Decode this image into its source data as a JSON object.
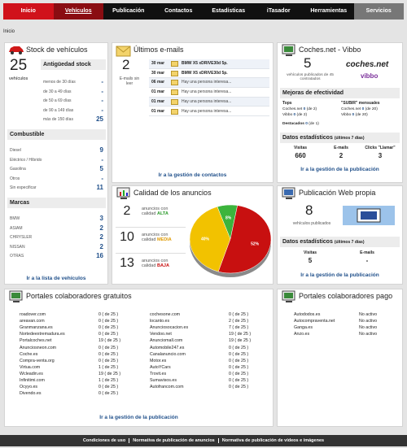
{
  "nav": [
    "Inicio",
    "Vehículos",
    "Publicación",
    "Contactos",
    "Estadísticas",
    "iTasador",
    "Herramientas",
    "Servicios"
  ],
  "breadcrumb": "Inicio",
  "stock": {
    "title": "Stock de vehículos",
    "count": "25",
    "count_label": "vehículos",
    "sections": [
      {
        "title": "Antigüedad stock",
        "rows": [
          [
            "menos de 30 días",
            "-"
          ],
          [
            "de 30 a 49 días",
            "-"
          ],
          [
            "de 50 a 69 días",
            "-"
          ],
          [
            "de 90 a 149 días",
            "-"
          ],
          [
            "más de 150 días",
            "25"
          ]
        ]
      },
      {
        "title": "Combustible",
        "rows": [
          [
            "Diesel",
            "9"
          ],
          [
            "Eléctrico / Híbrido",
            "-"
          ],
          [
            "Gasolina",
            "5"
          ],
          [
            "Otros",
            "-"
          ],
          [
            "Sin especificar",
            "11"
          ]
        ]
      },
      {
        "title": "Marcas",
        "rows": [
          [
            "BMW",
            "3"
          ],
          [
            "ASIAM",
            "2"
          ],
          [
            "CHRYSLER",
            "2"
          ],
          [
            "NISSAN",
            "2"
          ],
          [
            "OTRAS",
            "16"
          ]
        ]
      }
    ],
    "link": "Ir a la lista de vehículos"
  },
  "emails": {
    "title": "Últimos e-mails",
    "count": "2",
    "count_label": "E-mails sin leer",
    "rows": [
      [
        "30 mar",
        "BMW X5 xDRIVE30d 5p."
      ],
      [
        "30 mar",
        "BMW X5 xDRIVE30d 5p."
      ],
      [
        "06 mar",
        "Hay una persona interesa..."
      ],
      [
        "01 mar",
        "Hay una persona interesa..."
      ],
      [
        "01 mar",
        "Hay una persona interesa..."
      ],
      [
        "01 mar",
        "Hay una persona interesa..."
      ]
    ],
    "link": "Ir a la gestión de contactos"
  },
  "coches": {
    "title": "Coches.net - Vibbo",
    "count": "5",
    "count_label": "vehículos publicados de 45 contratados",
    "logos": [
      "coches.net",
      "vibbo"
    ],
    "improvements_title": "Mejoras de efectividad",
    "tops": {
      "title": "Tops",
      "rows": [
        [
          "Coches.net",
          "0",
          "(de 2)"
        ],
        [
          "Vibbo",
          "0",
          "(de 2)"
        ]
      ]
    },
    "subir": {
      "title": "\"SUBIR\" mensuales",
      "rows": [
        [
          "Coches.net",
          "0",
          "(de 20)"
        ],
        [
          "Vibbo",
          "0",
          "(de 20)"
        ]
      ]
    },
    "destacados": [
      "Destacados",
      "0",
      "(de 1)"
    ],
    "stats_title": "Datos estadísticos",
    "stats_period": "(últimos 7 días)",
    "stats": [
      [
        "Visitas",
        "660"
      ],
      [
        "E-mails",
        "2"
      ],
      [
        "Clicks \"Llamar\"",
        "3"
      ]
    ],
    "link": "Ir a la gestión de la publicación"
  },
  "calidad": {
    "title": "Calidad de los anuncios",
    "rows": [
      [
        "2",
        "anuncios con calidad",
        "ALTA"
      ],
      [
        "10",
        "anuncios con calidad",
        "MEDIA"
      ],
      [
        "13",
        "anuncios con calidad",
        "BAJA"
      ]
    ]
  },
  "chart_data": {
    "type": "pie",
    "values": [
      8,
      40,
      52
    ],
    "value_labels": [
      "8%",
      "40%",
      "52%"
    ],
    "colors": [
      "#3cb43c",
      "#f2c200",
      "#c81010"
    ]
  },
  "web": {
    "title": "Publicación Web propia",
    "count": "8",
    "count_label": "vehículos publicados",
    "stats_title": "Datos estadísticos",
    "stats_period": "(últimos 7 días)",
    "stats": [
      [
        "Visitas",
        "5"
      ],
      [
        "E-mails",
        "-"
      ]
    ],
    "link": "Ir a la gestión de la publicación"
  },
  "gratuitos": {
    "title": "Portales colaboradores gratuitos",
    "columns": [
      [
        [
          "roadover.com",
          "0 ( de 25 )"
        ],
        [
          "areavan.com",
          "0 ( de 25 )"
        ],
        [
          "Granmanzana.es",
          "0 ( de 25 )"
        ],
        [
          "Nortedeextremadura.es",
          "0 ( de 25 )"
        ],
        [
          "Portalcoches.net",
          "19 ( de 25 )"
        ],
        [
          "Anunciosneon.com",
          "0 ( de 25 )"
        ],
        [
          "Coche.es",
          "0 ( de 25 )"
        ],
        [
          "Compra-venta.org",
          "0 ( de 25 )"
        ],
        [
          "Virtua.com",
          "1 ( de 25 )"
        ],
        [
          "Wcleadin.es",
          "19 ( de 25 )"
        ],
        [
          "Infinitimi.com",
          "1 ( de 25 )"
        ],
        [
          "Ocyyo.es",
          "0 ( de 25 )"
        ],
        [
          "Divendo.es",
          "0 ( de 25 )"
        ]
      ],
      [
        [
          "cochesone.com",
          "0 ( de 25 )"
        ],
        [
          "locanto.es",
          "2 ( de 25 )"
        ],
        [
          "Anunciosocacion.es",
          "7 ( de 25 )"
        ],
        [
          "Vendoo.net",
          "19 ( de 25 )"
        ],
        [
          "Anunciomall.com",
          "19 ( de 25 )"
        ],
        [
          "Automobile247.es",
          "0 ( de 25 )"
        ],
        [
          "Canalanuncio.com",
          "0 ( de 25 )"
        ],
        [
          "Motor.es",
          "0 ( de 25 )"
        ],
        [
          "AutoYCars",
          "0 ( de 25 )"
        ],
        [
          "Trovit.es",
          "0 ( de 25 )"
        ],
        [
          "Sumavisos.es",
          "0 ( de 25 )"
        ],
        [
          "Autofrancom.com",
          "0 ( de 25 )"
        ]
      ]
    ],
    "link": "Ir a la gestión de la publicación"
  },
  "pago": {
    "title": "Portales colaboradores pago",
    "rows": [
      [
        "Autododos.es",
        "No activo"
      ],
      [
        "Autocompraventa.net",
        "No activo"
      ],
      [
        "Ganga.es",
        "No activo"
      ],
      [
        "Anzo.es",
        "No activo"
      ]
    ]
  },
  "footer": [
    "Condiciones de uso",
    "Normativa de publicación de anuncios",
    "Normativa de publicación de vídeos e imágenes"
  ]
}
